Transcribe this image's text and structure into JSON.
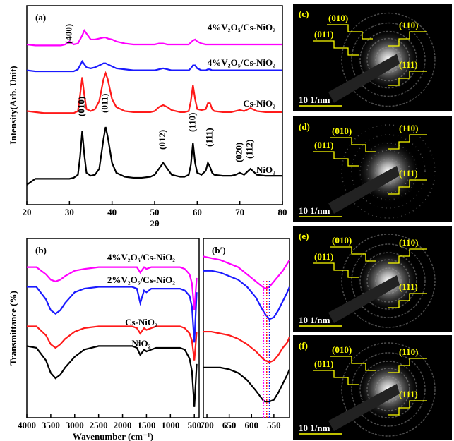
{
  "chart_data": [
    {
      "type": "line",
      "panel": "(a)",
      "ylabel": "Intensity(Arb. Unit)",
      "xlabel": "2θ",
      "x": [
        20,
        22,
        24,
        26,
        28,
        29,
        30,
        31,
        32,
        32.5,
        33,
        33.5,
        34,
        35,
        36,
        37,
        38,
        38.5,
        39,
        40,
        41,
        43,
        45,
        47,
        49,
        50,
        51,
        52,
        53,
        54,
        56,
        57,
        58,
        58.5,
        59,
        59.5,
        60,
        61,
        62,
        62.5,
        63,
        63.5,
        64,
        66,
        68,
        69,
        70,
        71,
        72,
        72.5,
        73,
        74,
        76,
        78,
        80
      ],
      "xlim": [
        20,
        80
      ],
      "xticks": [
        20,
        30,
        40,
        50,
        60,
        70,
        80
      ],
      "ylim": [
        0,
        100
      ],
      "series": [
        {
          "name": "4%V₂O₅/Cs-NiO₂",
          "color": "#ff00ff",
          "values": [
            80.5,
            80,
            80,
            80,
            80,
            80.5,
            82,
            80.5,
            81,
            83,
            85,
            87.5,
            86,
            83,
            83,
            83.5,
            84,
            84,
            83.5,
            83,
            82,
            81,
            80.5,
            80.5,
            80.5,
            80.5,
            81,
            81,
            80.5,
            80.5,
            80.5,
            80.5,
            80.5,
            81.5,
            82.5,
            83,
            82,
            81,
            80.5,
            80.5,
            80.5,
            80.5,
            80.5,
            80.5,
            80.5,
            80.5,
            80.5,
            80.5,
            80.5,
            80.5,
            80.5,
            80.5,
            80.5,
            80.5,
            80.5
          ]
        },
        {
          "name": "4%V₂O₅/Cs-NiO₂",
          "color": "#1a1aff",
          "values": [
            67.5,
            67,
            67,
            67,
            67,
            67,
            67,
            67,
            68,
            70,
            72,
            70.5,
            69,
            68.5,
            69,
            70,
            71,
            71,
            70.5,
            69.5,
            68.5,
            68,
            67.5,
            67.5,
            67.5,
            67.5,
            68,
            68.5,
            68,
            67.5,
            67.5,
            67.5,
            67.5,
            68.5,
            70,
            70,
            68.5,
            67.5,
            67.5,
            68,
            68,
            67.5,
            67.5,
            67.5,
            67.5,
            67.5,
            67.5,
            67.5,
            67.5,
            67.5,
            67.5,
            67.5,
            67.5,
            67.5,
            67.5
          ]
        },
        {
          "name": "Cs-NiO₂",
          "color": "#ff1a1a",
          "values": [
            47,
            46.5,
            46,
            46,
            46,
            46,
            46,
            46,
            47,
            55,
            64,
            55,
            48,
            47,
            48,
            52,
            63,
            66,
            63,
            53,
            49,
            47,
            46.5,
            46.5,
            46.5,
            47,
            49,
            50,
            49,
            47.5,
            46.5,
            46.5,
            47,
            52,
            60,
            53,
            48,
            47.5,
            48,
            51,
            51,
            48,
            47,
            46.5,
            46.5,
            47,
            47.5,
            47,
            48,
            48.5,
            48,
            47,
            46.5,
            46.5,
            46.5
          ]
        },
        {
          "name": "NiO₂",
          "color": "#000000",
          "values": [
            10,
            13,
            13,
            13,
            13,
            13,
            13,
            13.5,
            15,
            24,
            37,
            25,
            16,
            14.5,
            15,
            18,
            33,
            39,
            34,
            21,
            16,
            14,
            13.5,
            13.5,
            14,
            15,
            18,
            21,
            18,
            15,
            14,
            14,
            15,
            20,
            31,
            21,
            16,
            15,
            17,
            21,
            19,
            16,
            15,
            14.5,
            14.5,
            15,
            16,
            15,
            17,
            18,
            17,
            15,
            14.5,
            14.5,
            14.5
          ]
        }
      ],
      "annotations": [
        {
          "text": "(400)",
          "x": 30
        },
        {
          "text": "(010)",
          "x": 33
        },
        {
          "text": "(011)",
          "x": 38.5
        },
        {
          "text": "(012)",
          "x": 52
        },
        {
          "text": "(110)",
          "x": 59
        },
        {
          "text": "(111)",
          "x": 63
        },
        {
          "text": "(020)",
          "x": 70
        },
        {
          "text": "(112)",
          "x": 72.5
        }
      ]
    },
    {
      "type": "line",
      "panel": "(b)",
      "ylabel": "Transmittance (%)",
      "xlabel": "Wavenumber (cm⁻¹)",
      "x": [
        4000,
        3800,
        3600,
        3500,
        3400,
        3300,
        3200,
        3000,
        2800,
        2500,
        2000,
        1800,
        1700,
        1630,
        1550,
        1500,
        1400,
        1300,
        1200,
        1000,
        800,
        700,
        600,
        550,
        500,
        450
      ],
      "xlim": [
        4000,
        400
      ],
      "xticks": [
        4000,
        3500,
        3000,
        2500,
        2000,
        1500,
        1000,
        500
      ],
      "ylim": [
        0,
        100
      ],
      "series": [
        {
          "name": "4%V₂O₅/Cs-NiO₂",
          "color": "#ff00ff",
          "values": [
            84,
            84,
            80,
            77,
            76,
            77,
            79,
            82,
            83,
            84,
            84,
            84,
            84,
            81,
            84,
            83,
            84,
            84,
            84,
            84,
            84,
            83,
            80,
            75,
            60,
            78
          ]
        },
        {
          "name": "2%V₂O₅/Cs-NiO₂",
          "color": "#1a1aff",
          "values": [
            73,
            73,
            66,
            60,
            58,
            60,
            64,
            70,
            72,
            73,
            73,
            73,
            72,
            64,
            71,
            70,
            72,
            72,
            72,
            72,
            72,
            71,
            68,
            62,
            42,
            70
          ]
        },
        {
          "name": "Cs-NiO₂",
          "color": "#ff1a1a",
          "values": [
            51,
            51,
            46,
            41,
            39,
            41,
            44,
            48,
            50,
            51,
            51,
            51,
            50,
            47,
            50,
            49,
            50,
            51,
            51,
            51,
            51,
            50,
            47,
            43,
            32,
            48
          ]
        },
        {
          "name": "NiO₂",
          "color": "#000000",
          "values": [
            40,
            39,
            32,
            25,
            22,
            24,
            28,
            34,
            38,
            40,
            40,
            40,
            39,
            35,
            38,
            37,
            38,
            39,
            39,
            39,
            39,
            38,
            33,
            26,
            6,
            30
          ]
        }
      ]
    },
    {
      "type": "line",
      "panel": "(b′)",
      "x": [
        708,
        690,
        670,
        650,
        630,
        610,
        590,
        575,
        570,
        560,
        550,
        540,
        530,
        520,
        515
      ],
      "xlim": [
        708,
        515
      ],
      "xticks": [
        700,
        650,
        600,
        550
      ],
      "ylim": [
        0,
        100
      ],
      "series": [
        {
          "color": "#ff00ff",
          "values": [
            90,
            89,
            88,
            86,
            84,
            80,
            76,
            73,
            72,
            73,
            76,
            79,
            82,
            86,
            88
          ]
        },
        {
          "color": "#1a1aff",
          "values": [
            82,
            82,
            81,
            79,
            77,
            73,
            67,
            60,
            58,
            55,
            56,
            60,
            65,
            70,
            73
          ]
        },
        {
          "color": "#ff1a1a",
          "values": [
            48,
            48,
            47,
            46,
            44,
            41,
            37,
            33,
            32,
            31,
            32,
            35,
            39,
            42,
            45
          ]
        },
        {
          "color": "#000000",
          "values": [
            28,
            28,
            28,
            27,
            25,
            21,
            15,
            10,
            9,
            9,
            10,
            14,
            19,
            24,
            27
          ]
        }
      ],
      "vlines": [
        {
          "x": 573,
          "color": "#ff00ff"
        },
        {
          "x": 566,
          "color": "#ff1a1a"
        },
        {
          "x": 560,
          "color": "#1a1aff"
        }
      ]
    }
  ],
  "panels": [
    {
      "label": "(c)",
      "planes": [
        "(010)",
        "(011)",
        "(110)",
        "(111)"
      ],
      "scale": "10 1/nm"
    },
    {
      "label": "(d)",
      "planes": [
        "(010)",
        "(011)",
        "(110)",
        "(111)"
      ],
      "scale": "10 1/nm"
    },
    {
      "label": "(e)",
      "planes": [
        "(010)",
        "(011)",
        "(110)",
        "(111)"
      ],
      "scale": "10 1/nm"
    },
    {
      "label": "(f)",
      "planes": [
        "(010)",
        "(011)",
        "(110)",
        "(111)"
      ],
      "scale": "10 1/nm"
    }
  ]
}
